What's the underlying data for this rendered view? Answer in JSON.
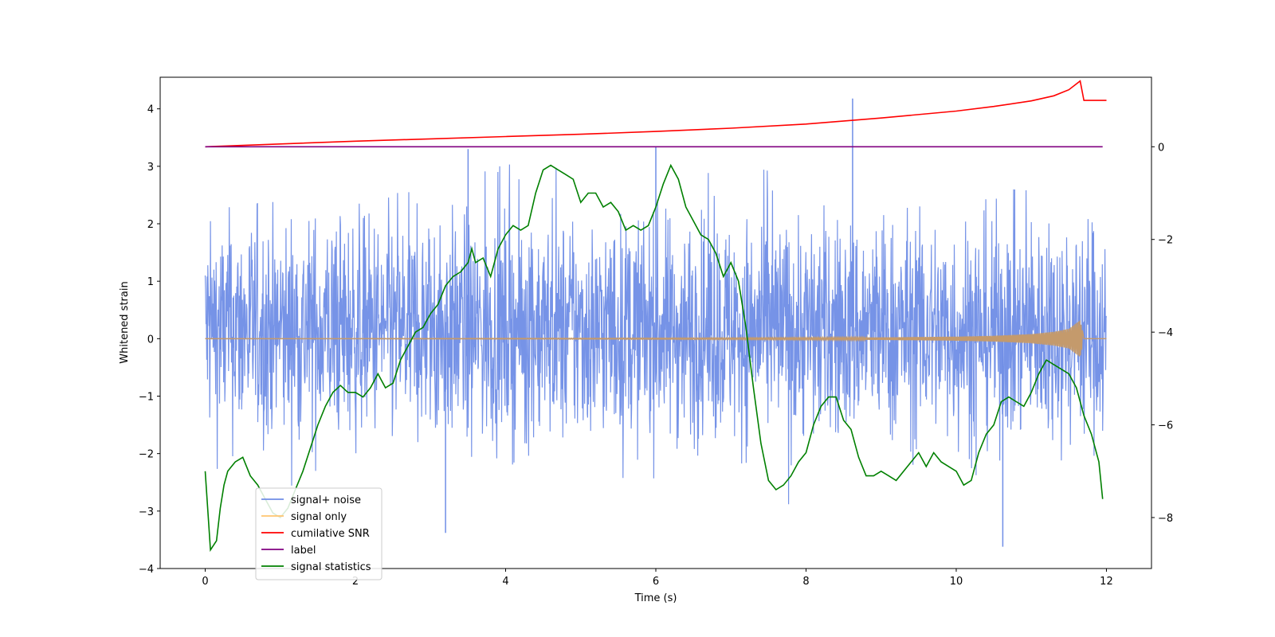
{
  "chart_data": {
    "type": "line",
    "title": "",
    "xlabel": "Time (s)",
    "ylabel": "Whitened strain",
    "y2label": "",
    "xlim": [
      -0.6,
      12.6
    ],
    "ylim": [
      -4,
      4.55
    ],
    "y2lim": [
      -9.1,
      1.5
    ],
    "x_ticks": [
      0,
      2,
      4,
      6,
      8,
      10,
      12
    ],
    "x_tick_labels": [
      "0",
      "2",
      "4",
      "6",
      "8",
      "10",
      "12"
    ],
    "y_ticks": [
      -4,
      -3,
      -2,
      -1,
      0,
      1,
      2,
      3,
      4
    ],
    "y_tick_labels": [
      "−4",
      "−3",
      "−2",
      "−1",
      "0",
      "1",
      "2",
      "3",
      "4"
    ],
    "y2_ticks": [
      -8,
      -6,
      -4,
      -2,
      0
    ],
    "y2_tick_labels": [
      "−8",
      "−6",
      "−4",
      "−2",
      "0"
    ],
    "grid": false,
    "legend_position": "lower-left",
    "legend": [
      {
        "label": "signal+ noise",
        "color": "#6f8de6"
      },
      {
        "label": "signal only",
        "color": "#ffc470"
      },
      {
        "label": "cumilative SNR",
        "color": "#ff0000"
      },
      {
        "label": "label",
        "color": "#800080"
      },
      {
        "label": "signal statistics",
        "color": "#008000"
      }
    ],
    "series": [
      {
        "name": "signal+ noise",
        "axis": "left",
        "color": "#6f8de6",
        "description": "whitened strain, noise-dominated, roughly uniform amplitude",
        "x_range": [
          0,
          12
        ],
        "envelope_upper": [
          2.45,
          2.6,
          2.7,
          2.8,
          3.3,
          3.2,
          3.0,
          3.35,
          3.0,
          4.18,
          2.9,
          2.8,
          2.7
        ],
        "envelope_lower": [
          -2.4,
          -2.8,
          -3.0,
          -3.4,
          -2.9,
          -3.1,
          -2.8,
          -2.9,
          -3.2,
          -3.3,
          -3.6,
          -3.15,
          -2.6
        ],
        "spikes": [
          {
            "x": 3.2,
            "y": -3.38
          },
          {
            "x": 3.5,
            "y": 3.3
          },
          {
            "x": 6.0,
            "y": 3.33
          },
          {
            "x": 8.62,
            "y": 4.18
          },
          {
            "x": 10.62,
            "y": -3.62
          }
        ]
      },
      {
        "name": "signal only",
        "axis": "left",
        "color": "#ffc470",
        "description": "chirp waveform, near zero then growing until merger near t≈11.7 s",
        "x": [
          0,
          2,
          4,
          6,
          7,
          8,
          9,
          10,
          10.5,
          11,
          11.3,
          11.5,
          11.65,
          11.7,
          12
        ],
        "amplitude": [
          0.003,
          0.004,
          0.006,
          0.009,
          0.012,
          0.016,
          0.022,
          0.035,
          0.05,
          0.08,
          0.12,
          0.17,
          0.32,
          0.03,
          0.0
        ]
      },
      {
        "name": "cumilative SNR",
        "axis": "right",
        "color": "#ff0000",
        "x": [
          0,
          1,
          2,
          3,
          4,
          5,
          6,
          7,
          8,
          9,
          10,
          10.5,
          11,
          11.3,
          11.5,
          11.65,
          11.7,
          12
        ],
        "y": [
          0.0,
          0.06,
          0.12,
          0.17,
          0.22,
          0.27,
          0.33,
          0.4,
          0.49,
          0.62,
          0.77,
          0.87,
          0.99,
          1.1,
          1.23,
          1.42,
          1.0,
          1.0
        ]
      },
      {
        "name": "label",
        "axis": "right",
        "color": "#800080",
        "x": [
          0,
          11.95
        ],
        "y": [
          0,
          0
        ]
      },
      {
        "name": "signal statistics",
        "axis": "right",
        "color": "#008000",
        "x": [
          0,
          0.07,
          0.15,
          0.2,
          0.25,
          0.3,
          0.35,
          0.4,
          0.45,
          0.5,
          0.6,
          0.7,
          0.8,
          0.9,
          1.0,
          1.1,
          1.2,
          1.3,
          1.4,
          1.5,
          1.6,
          1.7,
          1.8,
          1.9,
          2.0,
          2.1,
          2.2,
          2.3,
          2.4,
          2.5,
          2.6,
          2.7,
          2.8,
          2.9,
          3.0,
          3.1,
          3.2,
          3.3,
          3.4,
          3.5,
          3.55,
          3.6,
          3.7,
          3.8,
          3.9,
          4.0,
          4.1,
          4.2,
          4.3,
          4.4,
          4.5,
          4.6,
          4.7,
          4.8,
          4.9,
          5.0,
          5.1,
          5.2,
          5.3,
          5.4,
          5.5,
          5.6,
          5.7,
          5.8,
          5.9,
          6.0,
          6.1,
          6.2,
          6.3,
          6.4,
          6.5,
          6.6,
          6.7,
          6.8,
          6.9,
          7.0,
          7.1,
          7.2,
          7.3,
          7.4,
          7.5,
          7.6,
          7.7,
          7.8,
          7.9,
          8.0,
          8.1,
          8.2,
          8.3,
          8.4,
          8.5,
          8.6,
          8.7,
          8.8,
          8.9,
          9.0,
          9.1,
          9.2,
          9.3,
          9.4,
          9.5,
          9.6,
          9.7,
          9.8,
          9.9,
          10.0,
          10.1,
          10.2,
          10.3,
          10.4,
          10.5,
          10.6,
          10.7,
          10.8,
          10.9,
          11.0,
          11.1,
          11.2,
          11.3,
          11.4,
          11.5,
          11.6,
          11.7,
          11.8,
          11.9,
          11.95
        ],
        "y": [
          -7.0,
          -8.7,
          -8.5,
          -7.8,
          -7.3,
          -7.0,
          -6.9,
          -6.8,
          -6.75,
          -6.7,
          -7.1,
          -7.3,
          -7.6,
          -7.9,
          -8.0,
          -7.8,
          -7.4,
          -7.0,
          -6.5,
          -6.0,
          -5.6,
          -5.3,
          -5.15,
          -5.3,
          -5.3,
          -5.4,
          -5.2,
          -4.9,
          -5.2,
          -5.1,
          -4.6,
          -4.3,
          -4.0,
          -3.9,
          -3.6,
          -3.4,
          -3.0,
          -2.8,
          -2.7,
          -2.5,
          -2.2,
          -2.5,
          -2.4,
          -2.8,
          -2.2,
          -1.9,
          -1.7,
          -1.8,
          -1.7,
          -1.0,
          -0.5,
          -0.4,
          -0.5,
          -0.6,
          -0.7,
          -1.2,
          -1.0,
          -1.0,
          -1.3,
          -1.2,
          -1.4,
          -1.8,
          -1.7,
          -1.8,
          -1.7,
          -1.3,
          -0.8,
          -0.4,
          -0.7,
          -1.3,
          -1.6,
          -1.9,
          -2.0,
          -2.3,
          -2.8,
          -2.5,
          -2.9,
          -3.9,
          -5.2,
          -6.4,
          -7.2,
          -7.4,
          -7.3,
          -7.1,
          -6.8,
          -6.6,
          -6.0,
          -5.6,
          -5.4,
          -5.4,
          -5.9,
          -6.1,
          -6.7,
          -7.1,
          -7.1,
          -7.0,
          -7.1,
          -7.2,
          -7.0,
          -6.8,
          -6.6,
          -6.9,
          -6.6,
          -6.8,
          -6.9,
          -7.0,
          -7.3,
          -7.2,
          -6.6,
          -6.2,
          -6.0,
          -5.5,
          -5.4,
          -5.5,
          -5.6,
          -5.3,
          -4.9,
          -4.6,
          -4.7,
          -4.8,
          -4.9,
          -5.2,
          -5.8,
          -6.2,
          -6.8,
          -7.6
        ]
      }
    ]
  }
}
